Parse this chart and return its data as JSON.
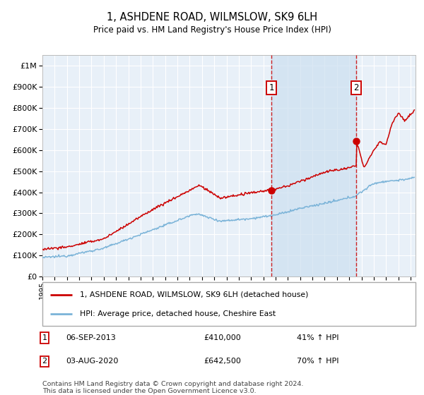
{
  "title": "1, ASHDENE ROAD, WILMSLOW, SK9 6LH",
  "subtitle": "Price paid vs. HM Land Registry's House Price Index (HPI)",
  "y_ticks": [
    0,
    100000,
    200000,
    300000,
    400000,
    500000,
    600000,
    700000,
    800000,
    900000,
    1000000
  ],
  "y_tick_labels": [
    "£0",
    "£100K",
    "£200K",
    "£300K",
    "£400K",
    "£500K",
    "£600K",
    "£700K",
    "£800K",
    "£900K",
    "£1M"
  ],
  "x_start_year": 1995,
  "x_end_year": 2025,
  "hpi_color": "#7ab3d8",
  "price_color": "#cc0000",
  "sale1_date_label": "06-SEP-2013",
  "sale1_price": 410000,
  "sale1_label": "41% ↑ HPI",
  "sale1_x": 2013.68,
  "sale2_date_label": "03-AUG-2020",
  "sale2_price": 642500,
  "sale2_label": "70% ↑ HPI",
  "sale2_x": 2020.58,
  "legend_line1": "1, ASHDENE ROAD, WILMSLOW, SK9 6LH (detached house)",
  "legend_line2": "HPI: Average price, detached house, Cheshire East",
  "footnote1": "Contains HM Land Registry data © Crown copyright and database right 2024.",
  "footnote2": "This data is licensed under the Open Government Licence v3.0.",
  "background_color": "#ffffff",
  "plot_bg_color": "#e8f0f8",
  "grid_color": "#ffffff",
  "shade_color": "#ccdff0"
}
